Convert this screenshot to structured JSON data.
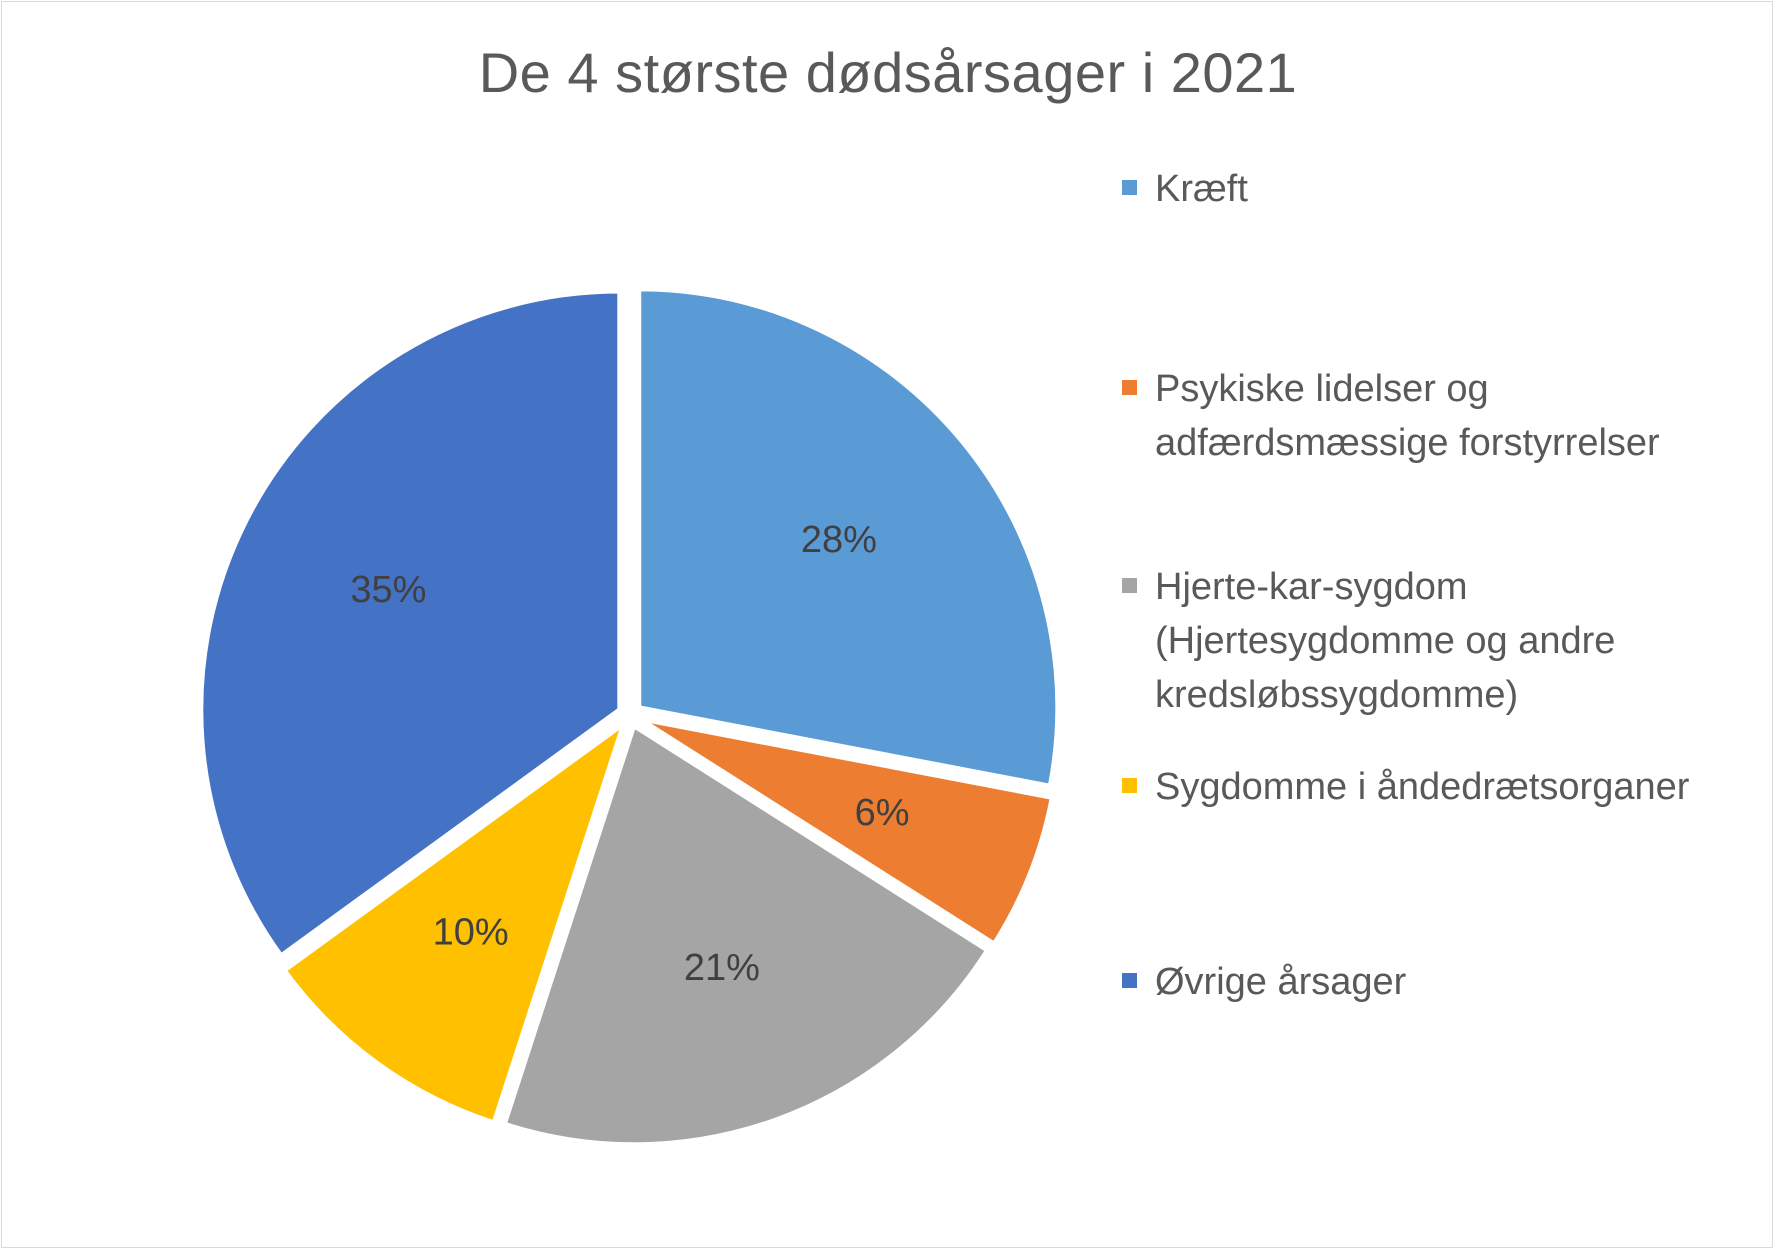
{
  "chart_data": {
    "type": "pie",
    "title": "De 4 største dødsårsager i 2021",
    "legend_position": "right",
    "slices": [
      {
        "name": "Kræft",
        "value": 28,
        "label": "28%",
        "color": "#5b9bd5"
      },
      {
        "name": "Psykiske lidelser og adfærdsmæssige forstyrrelser",
        "value": 6,
        "label": "6%",
        "color": "#ed7d31"
      },
      {
        "name": "Hjerte-kar-sygdom (Hjertesygdomme og andre kredsløbssygdomme)",
        "value": 21,
        "label": "21%",
        "color": "#a5a5a5"
      },
      {
        "name": "Sygdomme i åndedrætsorganer",
        "value": 10,
        "label": "10%",
        "color": "#ffc000"
      },
      {
        "name": "Øvrige årsager",
        "value": 35,
        "label": "35%",
        "color": "#4472c4"
      }
    ]
  }
}
